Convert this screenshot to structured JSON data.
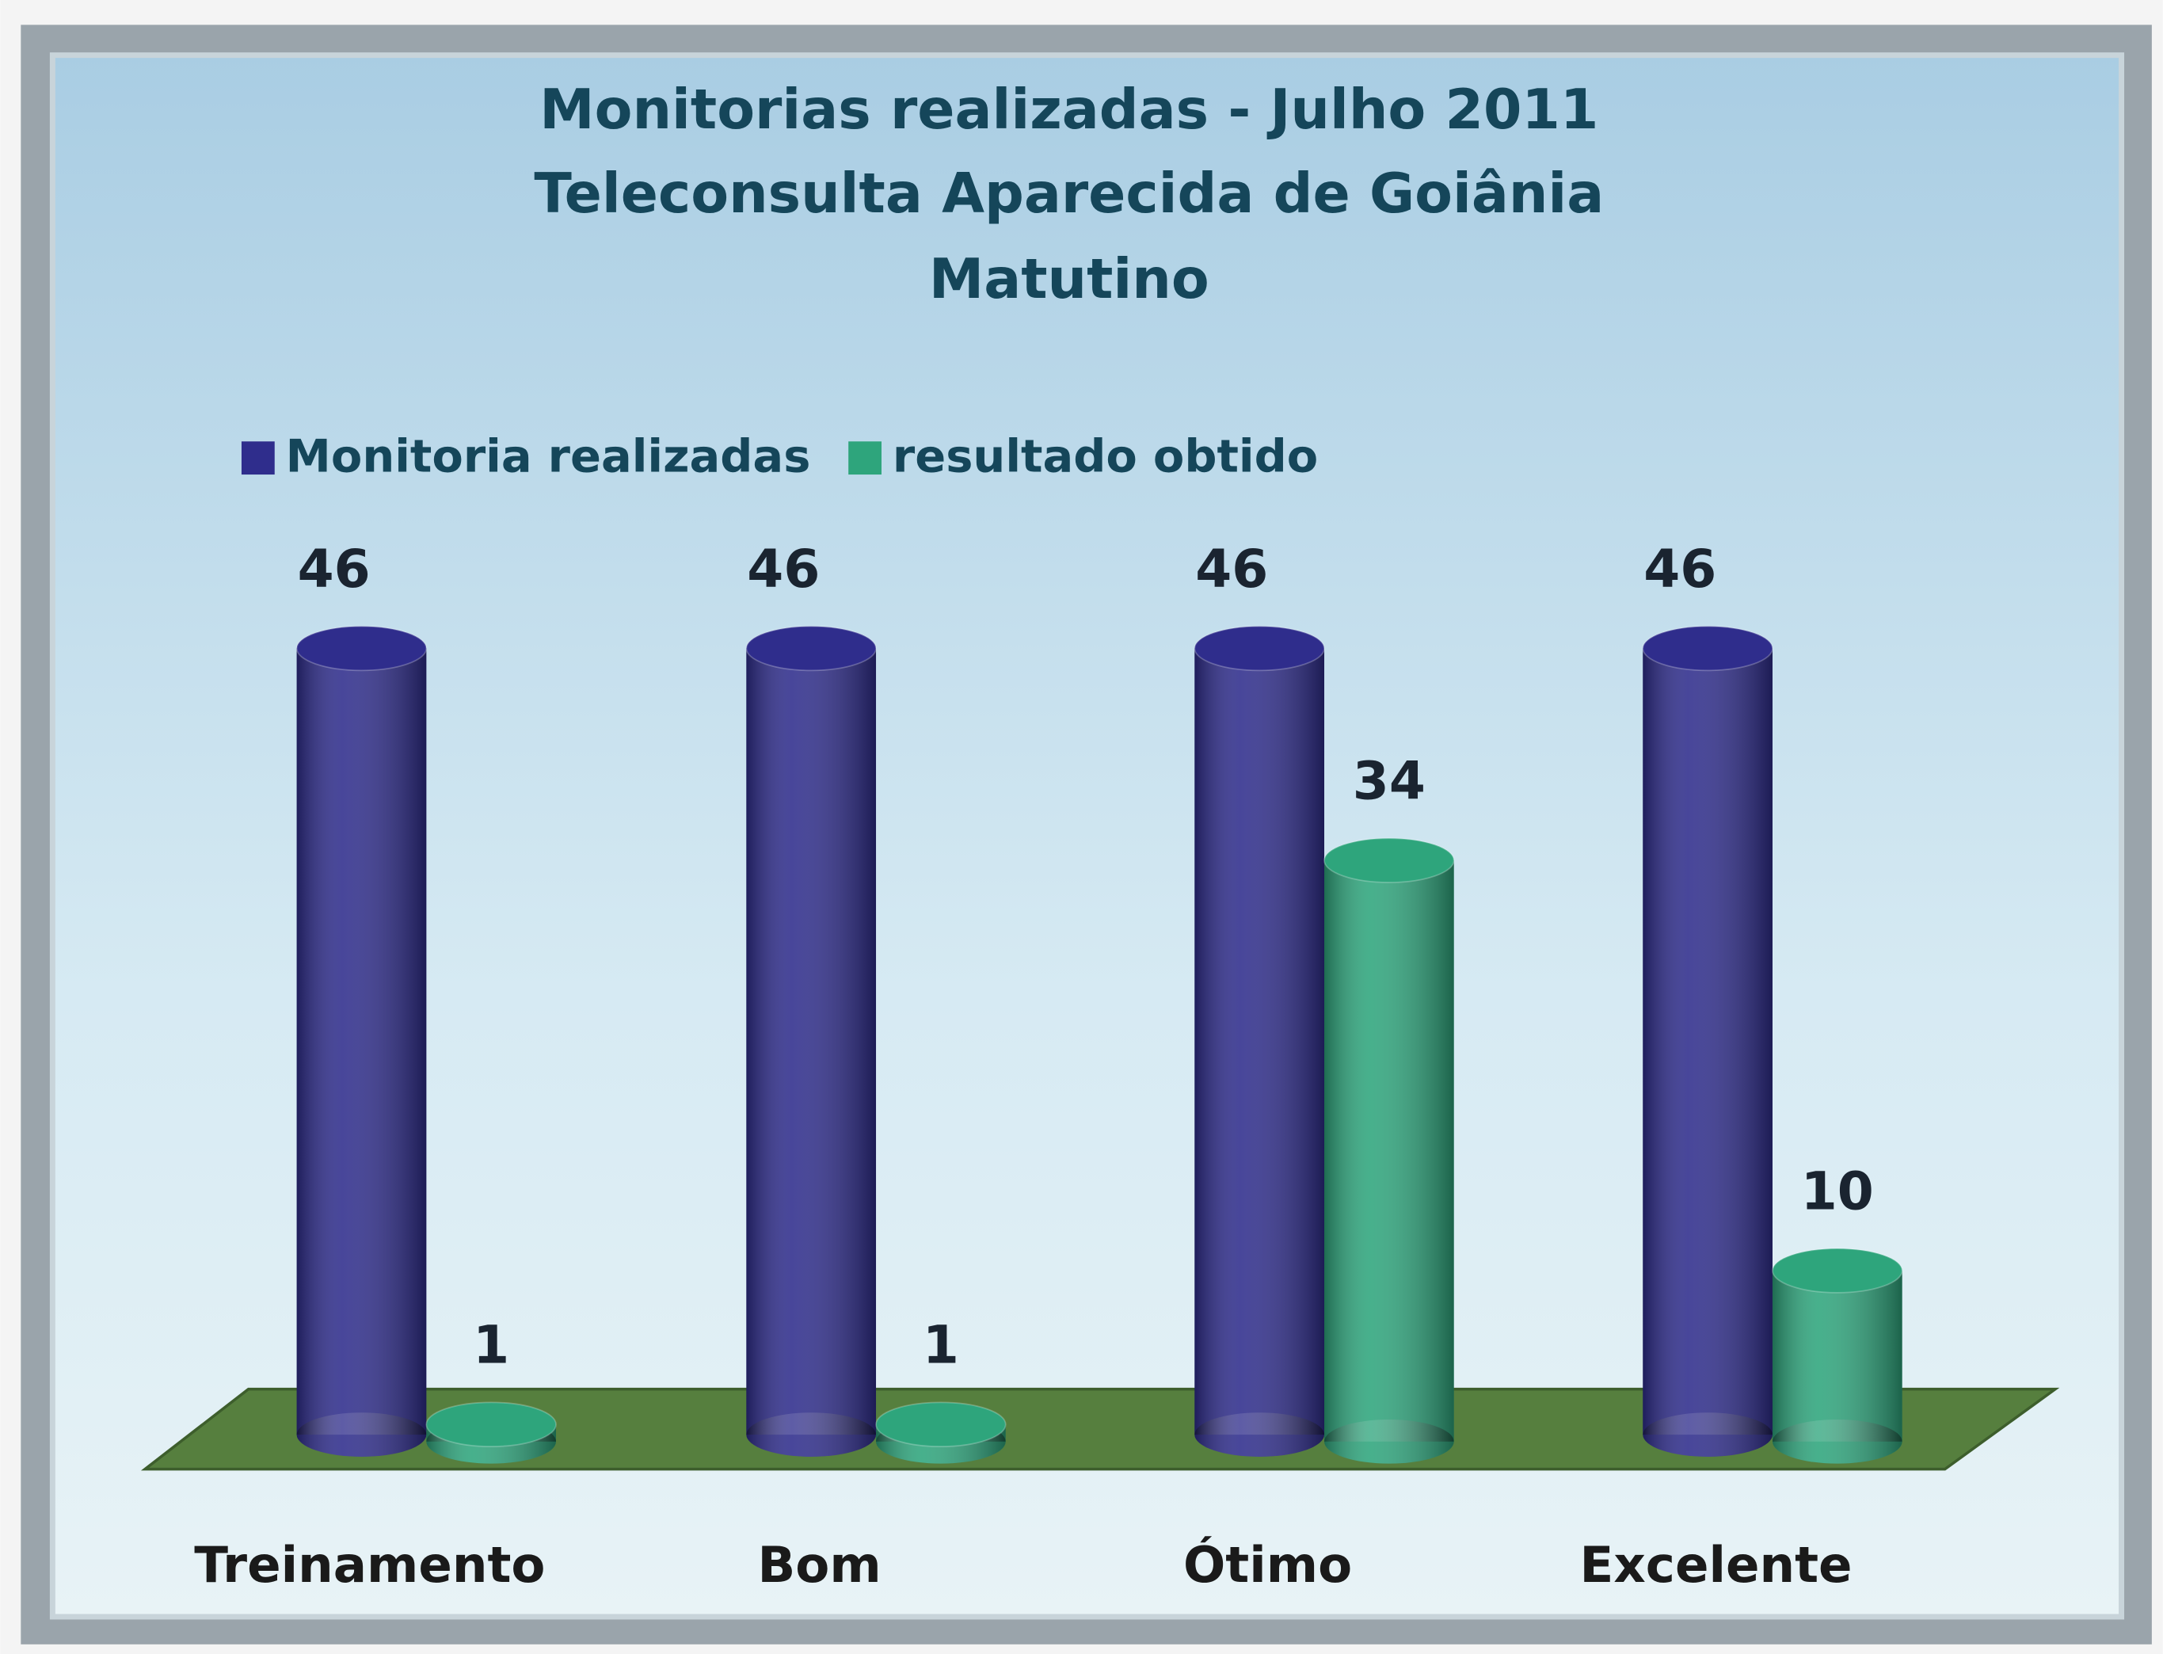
{
  "chart_data": {
    "type": "bar",
    "title": [
      "Monitorias realizadas  - Julho 2011",
      "Teleconsulta Aparecida de Goiânia",
      "Matutino"
    ],
    "categories": [
      "Treinamento",
      "Bom",
      "Ótimo",
      "Excelente"
    ],
    "series": [
      {
        "name": "Monitoria realizadas",
        "color": "#2f2d8c",
        "values": [
          46,
          46,
          46,
          46
        ]
      },
      {
        "name": "resultado obtido",
        "color": "#2ea57c",
        "values": [
          1,
          1,
          34,
          10
        ]
      }
    ],
    "legend": "top"
  }
}
